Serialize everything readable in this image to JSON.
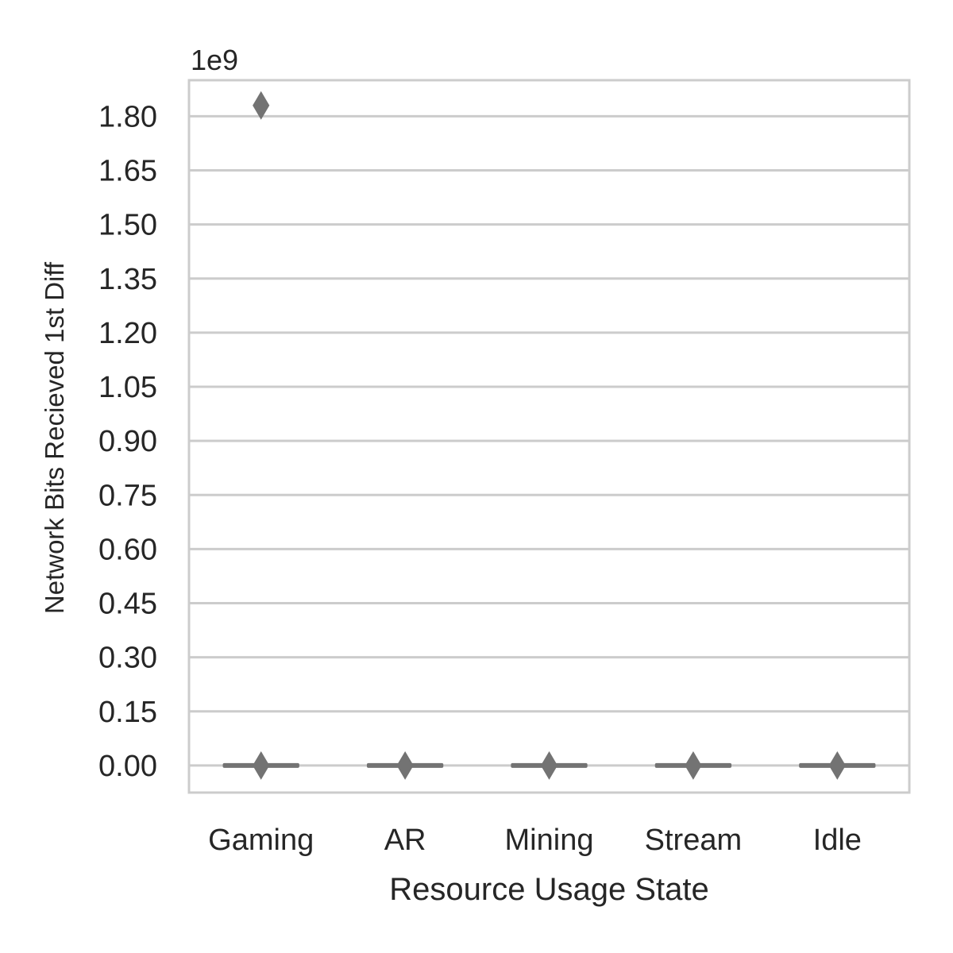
{
  "chart_data": {
    "type": "box",
    "title": "",
    "xlabel": "Resource Usage State",
    "ylabel": "Network Bits Recieved 1st Diff",
    "y_offset_label": "1e9",
    "y_scale": 1000000000,
    "ylim": [
      -0.075,
      1.9
    ],
    "yticks": [
      0.0,
      0.15,
      0.3,
      0.45,
      0.6,
      0.75,
      0.9,
      1.05,
      1.2,
      1.35,
      1.5,
      1.65,
      1.8
    ],
    "ytick_labels": [
      "0.00",
      "0.15",
      "0.30",
      "0.45",
      "0.60",
      "0.75",
      "0.90",
      "1.05",
      "1.20",
      "1.35",
      "1.50",
      "1.65",
      "1.80"
    ],
    "grid": true,
    "categories": [
      "Gaming",
      "AR",
      "Mining",
      "Stream",
      "Idle"
    ],
    "boxes": [
      {
        "category": "Gaming",
        "q1": 0.0,
        "median": 0.0,
        "q3": 0.0,
        "whisker_low": 0.0,
        "whisker_high": 0.0,
        "outliers": [
          1.83,
          0.0
        ]
      },
      {
        "category": "AR",
        "q1": 0.0,
        "median": 0.0,
        "q3": 0.0,
        "whisker_low": 0.0,
        "whisker_high": 0.0,
        "outliers": [
          0.0
        ]
      },
      {
        "category": "Mining",
        "q1": 0.0,
        "median": 0.0,
        "q3": 0.0,
        "whisker_low": 0.0,
        "whisker_high": 0.0,
        "outliers": [
          0.0
        ]
      },
      {
        "category": "Stream",
        "q1": 0.0,
        "median": 0.0,
        "q3": 0.0,
        "whisker_low": 0.0,
        "whisker_high": 0.0,
        "outliers": [
          0.0
        ]
      },
      {
        "category": "Idle",
        "q1": 0.0,
        "median": 0.0,
        "q3": 0.0,
        "whisker_low": 0.0,
        "whisker_high": 0.0,
        "outliers": [
          0.0
        ]
      }
    ],
    "colors": {
      "box": "#737373",
      "grid": "#cccccc",
      "spine": "#cccccc",
      "text": "#262626"
    }
  }
}
